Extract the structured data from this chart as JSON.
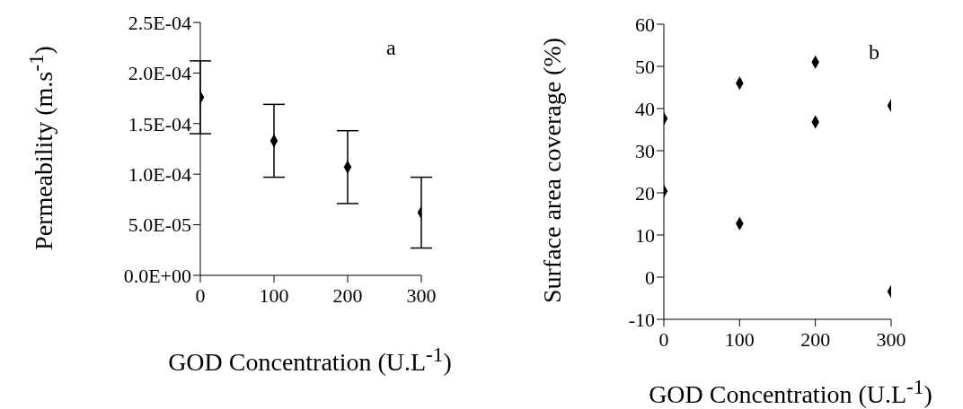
{
  "chart_data": [
    {
      "type": "scatter",
      "xlabel": "GOD Concentration (U.L$^{-1}$)",
      "ylabel": "Permeability (m.s$^{-1}$)",
      "annotations": [
        "a"
      ],
      "x": [
        0,
        100,
        200,
        300
      ],
      "values": [
        0.000176,
        0.000133,
        0.000107,
        6.2e-05
      ],
      "errors": [
        3.6e-05,
        3.6e-05,
        3.6e-05,
        3.5e-05
      ],
      "color": "#000000",
      "marker": "diamond",
      "xlim": [
        0,
        300
      ],
      "xticks": [
        0,
        100,
        200,
        300
      ],
      "ylim": [
        0,
        0.00025
      ],
      "yticks": [
        {
          "value": 0,
          "label": "0.0E+00"
        },
        {
          "value": 5e-05,
          "label": "5.0E-05"
        },
        {
          "value": 0.0001,
          "label": "1.0E-04"
        },
        {
          "value": 0.00015,
          "label": "1.5E-04"
        },
        {
          "value": 0.0002,
          "label": "2.0E-04"
        },
        {
          "value": 0.00025,
          "label": "2.5E-04"
        }
      ]
    },
    {
      "type": "scatter",
      "xlabel": "GOD Concentration (U.L$^{-1}$)",
      "ylabel": "Surface area coverage (%)",
      "annotations": [
        "b"
      ],
      "x": [
        0,
        0,
        100,
        100,
        200,
        200,
        300,
        300
      ],
      "values": [
        37.6,
        20.4,
        46.0,
        12.7,
        51.0,
        36.8,
        40.7,
        -3.4
      ],
      "color": "#000000",
      "marker": "diamond",
      "xlim": [
        0,
        300
      ],
      "xticks": [
        0,
        100,
        200,
        300
      ],
      "ylim": [
        -10,
        60
      ],
      "yticks": [
        -10,
        0,
        10,
        20,
        30,
        40,
        50,
        60
      ]
    }
  ]
}
